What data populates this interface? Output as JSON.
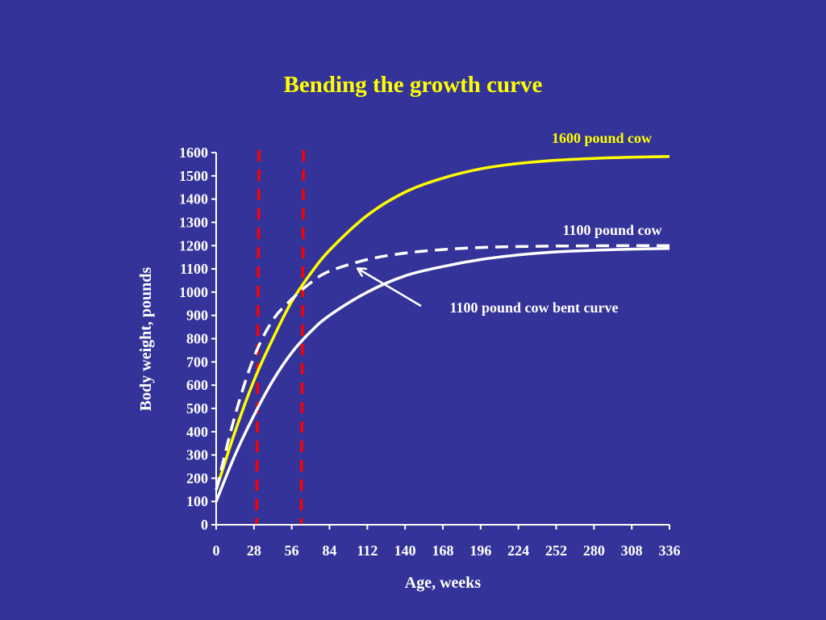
{
  "chart_data": {
    "type": "line",
    "title": "Bending the growth curve",
    "xlabel": "Age, weeks",
    "ylabel": "Body weight, pounds",
    "xlim": [
      0,
      336
    ],
    "ylim": [
      0,
      1600
    ],
    "x_ticks": [
      0,
      28,
      56,
      84,
      112,
      140,
      168,
      196,
      224,
      252,
      280,
      308,
      336
    ],
    "y_ticks": [
      0,
      100,
      200,
      300,
      400,
      500,
      600,
      700,
      800,
      900,
      1000,
      1100,
      1200,
      1300,
      1400,
      1500,
      1600
    ],
    "grid": false,
    "series": [
      {
        "name": "1600 pound cow",
        "color": "#ffff00",
        "style": "solid",
        "x": [
          0,
          14,
          28,
          42,
          56,
          70,
          84,
          112,
          140,
          168,
          196,
          224,
          252,
          280,
          308,
          336
        ],
        "y": [
          150,
          400,
          620,
          800,
          960,
          1080,
          1180,
          1330,
          1430,
          1490,
          1530,
          1553,
          1567,
          1575,
          1580,
          1583
        ]
      },
      {
        "name": "1100 pound cow",
        "color": "#ffffff",
        "style": "solid",
        "x": [
          0,
          14,
          28,
          42,
          56,
          70,
          84,
          112,
          140,
          168,
          196,
          224,
          252,
          280,
          308,
          336
        ],
        "y": [
          100,
          300,
          470,
          620,
          740,
          830,
          900,
          1000,
          1070,
          1110,
          1140,
          1160,
          1173,
          1180,
          1185,
          1188
        ]
      },
      {
        "name": "1100 pound cow bent curve",
        "color": "#ffffff",
        "style": "dashed",
        "x": [
          0,
          14,
          28,
          42,
          56,
          70,
          84,
          112,
          140,
          168,
          196,
          224,
          252,
          280,
          308,
          336
        ],
        "y": [
          150,
          470,
          720,
          880,
          970,
          1040,
          1090,
          1140,
          1168,
          1183,
          1192,
          1196,
          1198,
          1199,
          1200,
          1200
        ]
      }
    ],
    "reference_lines": [
      {
        "axis": "x",
        "value": 30,
        "color": "#ff0000",
        "style": "dashed"
      },
      {
        "axis": "x",
        "value": 63,
        "color": "#ff0000",
        "style": "dashed"
      }
    ],
    "annotations": [
      {
        "text": "1600 pound cow",
        "color": "#ffff00"
      },
      {
        "text": "1100 pound cow",
        "color": "#ffffff"
      },
      {
        "text": "1100 pound cow bent curve",
        "color": "#ffffff",
        "arrow_to": {
          "x": 105,
          "y": 1140
        }
      }
    ]
  }
}
